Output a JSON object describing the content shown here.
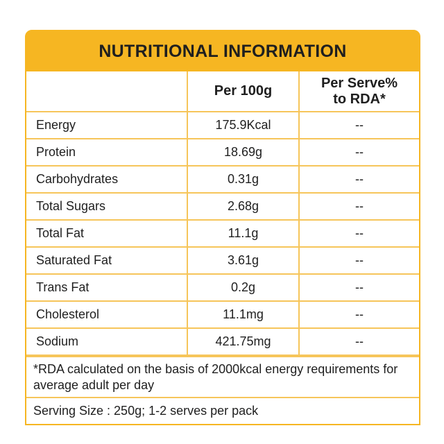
{
  "title": "NUTRITIONAL INFORMATION",
  "columns": [
    "",
    "Per 100g",
    "Per Serve% to RDA*"
  ],
  "rows": [
    {
      "name": "Energy",
      "per100g": "175.9Kcal",
      "rda": "--"
    },
    {
      "name": "Protein",
      "per100g": "18.69g",
      "rda": "--"
    },
    {
      "name": "Carbohydrates",
      "per100g": "0.31g",
      "rda": "--"
    },
    {
      "name": "Total Sugars",
      "per100g": "2.68g",
      "rda": "--"
    },
    {
      "name": "Total Fat",
      "per100g": "11.1g",
      "rda": "--"
    },
    {
      "name": "Saturated Fat",
      "per100g": "3.61g",
      "rda": "--"
    },
    {
      "name": "Trans Fat",
      "per100g": "0.2g",
      "rda": "--"
    },
    {
      "name": "Cholesterol",
      "per100g": "11.1mg",
      "rda": "--"
    },
    {
      "name": "Sodium",
      "per100g": "421.75mg",
      "rda": "--"
    }
  ],
  "note": "*RDA calculated on the basis of 2000kcal energy requirements for average adult per day",
  "serving": "Serving Size : 250g; 1-2 serves per pack",
  "colors": {
    "accent": "#f6b622",
    "border": "#f6c55a",
    "text": "#1f1f1f"
  }
}
